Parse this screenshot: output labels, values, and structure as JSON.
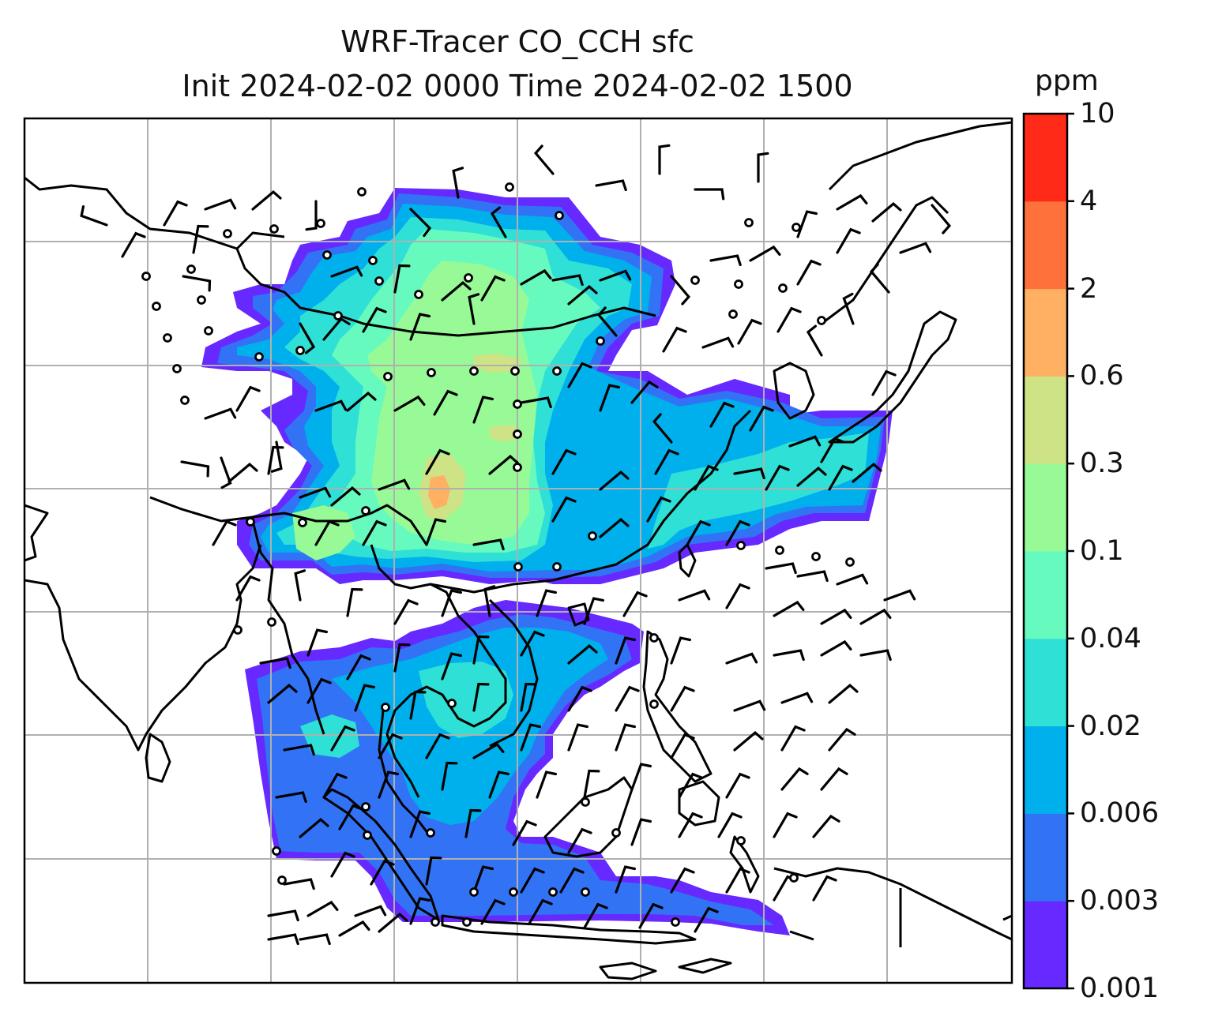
{
  "title": {
    "line1": "WRF-Tracer CO_CCH sfc",
    "line2": "Init 2024-02-02 0000 Time 2024-02-02 1500"
  },
  "colorbar": {
    "units": "ppm",
    "levels": [
      "0.001",
      "0.003",
      "0.006",
      "0.02",
      "0.04",
      "0.1",
      "0.3",
      "0.6",
      "2",
      "4",
      "10"
    ],
    "colors": [
      "#6629ff",
      "#3273f5",
      "#00b0ec",
      "#2fe0d6",
      "#66fabf",
      "#97fa96",
      "#cde385",
      "#ffb062",
      "#ff713b",
      "#ff2a18"
    ]
  },
  "map": {
    "gridlines": true,
    "coastline_color": "#000000",
    "gridline_color": "#b0b0b0",
    "field": "CO_CCH surface tracer concentration",
    "overlay": "wind barbs and calm-wind circles"
  }
}
